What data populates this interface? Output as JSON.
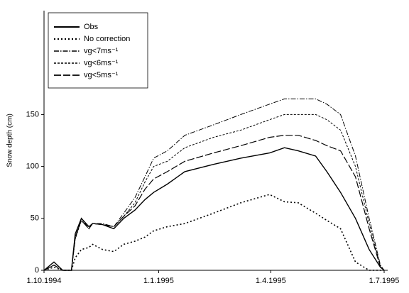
{
  "chart_data": {
    "type": "line",
    "y_label": "Snow depth (cm)",
    "x": [
      "1994-10-01",
      "1994-10-09",
      "1994-10-16",
      "1994-10-23",
      "1994-10-26",
      "1994-10-31",
      "1994-11-06",
      "1994-11-09",
      "1994-11-17",
      "1994-11-26",
      "1994-12-04",
      "1994-12-13",
      "1994-12-21",
      "1994-12-28",
      "1995-01-08",
      "1995-01-22",
      "1995-02-14",
      "1995-03-08",
      "1995-03-31",
      "1995-04-12",
      "1995-04-23",
      "1995-05-07",
      "1995-05-16",
      "1995-05-27",
      "1995-06-08",
      "1995-06-19",
      "1995-06-28",
      "1995-07-01"
    ],
    "series": [
      {
        "name": "Obs",
        "color": "#000000",
        "style": "solid",
        "values": [
          0,
          8,
          0,
          0,
          35,
          50,
          42,
          45,
          44,
          40,
          50,
          58,
          68,
          75,
          83,
          95,
          102,
          108,
          113,
          118,
          115,
          110,
          95,
          75,
          50,
          20,
          3,
          0
        ]
      },
      {
        "name": "No correction",
        "color": "#000000",
        "style": "dotted",
        "values": [
          0,
          3,
          0,
          0,
          12,
          20,
          22,
          25,
          20,
          18,
          25,
          28,
          32,
          38,
          42,
          45,
          55,
          65,
          73,
          66,
          65,
          55,
          48,
          40,
          8,
          0,
          0,
          0
        ]
      },
      {
        "name": "vg<7ms⁻¹",
        "color": "#000000",
        "style": "dashdot",
        "values": [
          0,
          5,
          0,
          0,
          30,
          50,
          40,
          45,
          45,
          42,
          55,
          70,
          90,
          108,
          115,
          130,
          140,
          150,
          160,
          165,
          165,
          165,
          160,
          150,
          110,
          50,
          5,
          0
        ]
      },
      {
        "name": "vg<6ms⁻¹",
        "color": "#000000",
        "style": "shortdash",
        "values": [
          0,
          5,
          0,
          0,
          30,
          48,
          40,
          45,
          44,
          42,
          52,
          65,
          85,
          100,
          105,
          118,
          128,
          135,
          145,
          150,
          150,
          150,
          145,
          135,
          100,
          45,
          4,
          0
        ]
      },
      {
        "name": "vg<5ms⁻¹",
        "color": "#000000",
        "style": "longdash",
        "values": [
          0,
          5,
          0,
          0,
          32,
          48,
          40,
          45,
          44,
          42,
          52,
          62,
          78,
          88,
          95,
          105,
          113,
          120,
          128,
          130,
          130,
          125,
          120,
          115,
          90,
          40,
          3,
          0
        ]
      }
    ],
    "xlim": [
      "1994-10-01",
      "1995-07-01"
    ],
    "xticks": [
      {
        "value": "1994-10-01",
        "label": "1.10.1994"
      },
      {
        "value": "1995-01-01",
        "label": "1.1.1995"
      },
      {
        "value": "1995-04-01",
        "label": "1.4.1995"
      },
      {
        "value": "1995-07-01",
        "label": "1.7.1995"
      }
    ],
    "ylim": [
      0,
      250
    ],
    "yticks": [
      0,
      50,
      100,
      150
    ],
    "legend": "upper left"
  }
}
